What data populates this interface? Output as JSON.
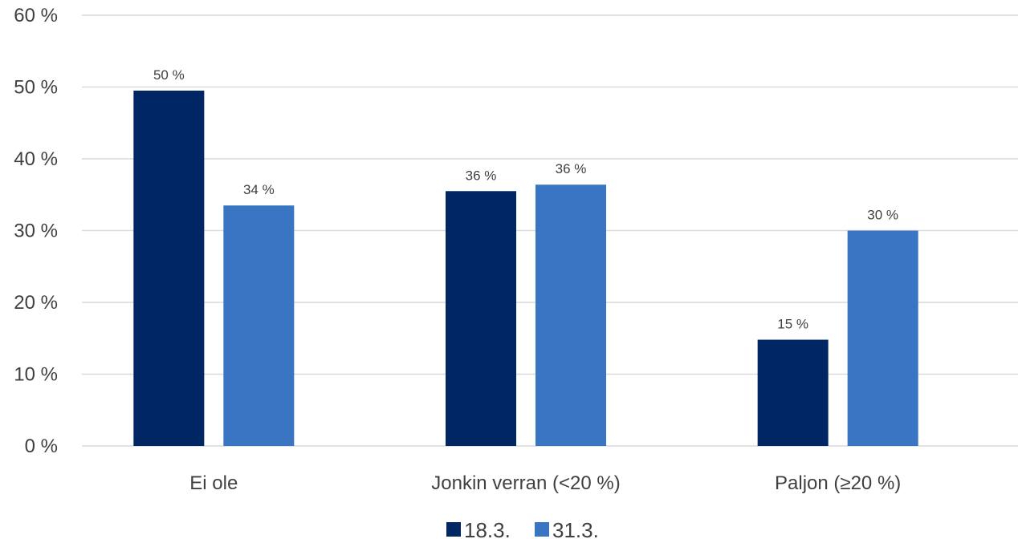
{
  "chart_data": {
    "type": "bar",
    "categories": [
      "Ei ole",
      "Jonkin verran (<20 %)",
      "Paljon (≥20 %)"
    ],
    "series": [
      {
        "name": "18.3.",
        "values": [
          49.5,
          35.5,
          14.8
        ],
        "labels": [
          "50 %",
          "36 %",
          "15 %"
        ],
        "color": "#002663"
      },
      {
        "name": "31.3.",
        "values": [
          33.5,
          36.4,
          30.0
        ],
        "labels": [
          "34 %",
          "36 %",
          "30 %"
        ],
        "color": "#3a75c4"
      }
    ],
    "ylim": [
      0,
      60
    ],
    "yticks": [
      0,
      10,
      20,
      30,
      40,
      50,
      60
    ],
    "ytick_labels": [
      "0 %",
      "10 %",
      "20 %",
      "30 %",
      "40 %",
      "50 %",
      "60 %"
    ],
    "grid": true,
    "gridline_color": "#d9d9d9",
    "legend_position": "bottom",
    "title": "",
    "xlabel": "",
    "ylabel": ""
  }
}
